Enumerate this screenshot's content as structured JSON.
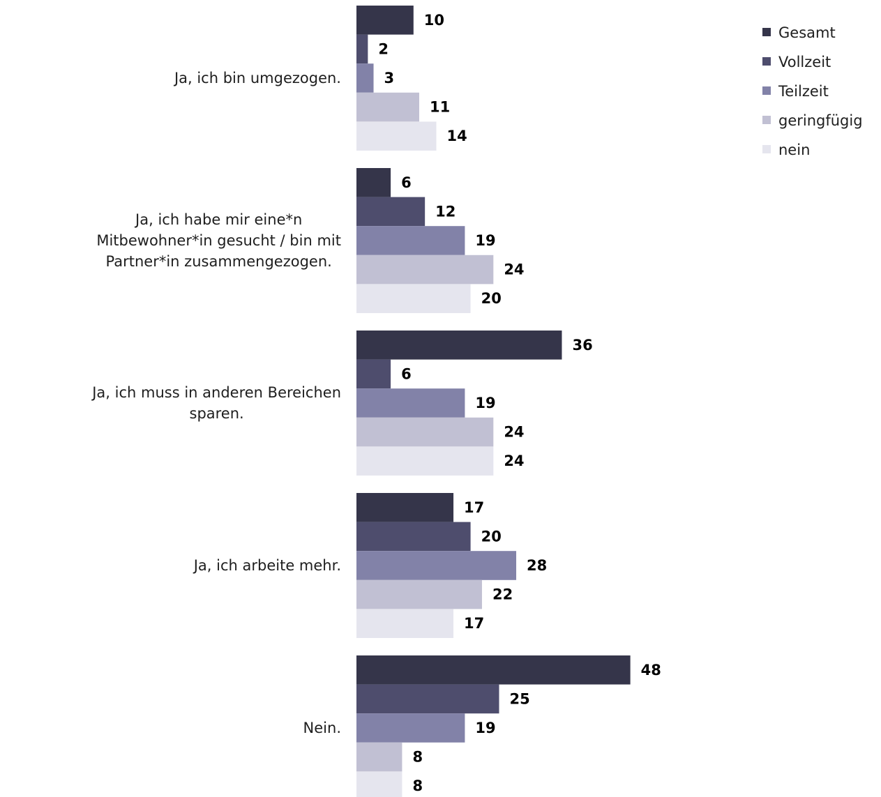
{
  "chart_data": {
    "type": "bar",
    "orientation": "horizontal",
    "categories": [
      "Ja, ich bin umgezogen.",
      "Ja, ich habe mir eine*n Mitbewohner*in gesucht / bin mit Partner*in zusammengezogen.",
      "Ja, ich muss in anderen Bereichen sparen.",
      "Ja, ich arbeite mehr.",
      "Nein."
    ],
    "series": [
      {
        "name": "Gesamt",
        "color": "#35354a",
        "values": [
          10,
          6,
          36,
          17,
          48
        ]
      },
      {
        "name": "Vollzeit",
        "color": "#4e4d6d",
        "values": [
          2,
          12,
          6,
          20,
          25
        ]
      },
      {
        "name": "Teilzeit",
        "color": "#8282a8",
        "values": [
          3,
          19,
          19,
          28,
          19
        ]
      },
      {
        "name": "geringfügig",
        "color": "#c1c0d3",
        "values": [
          11,
          24,
          24,
          22,
          8
        ]
      },
      {
        "name": "nein",
        "color": "#e5e5ee",
        "values": [
          14,
          20,
          24,
          17,
          8
        ]
      }
    ],
    "xlim": [
      0,
      48
    ],
    "grid": false,
    "legend_position": "top-right",
    "data_labels": true
  }
}
